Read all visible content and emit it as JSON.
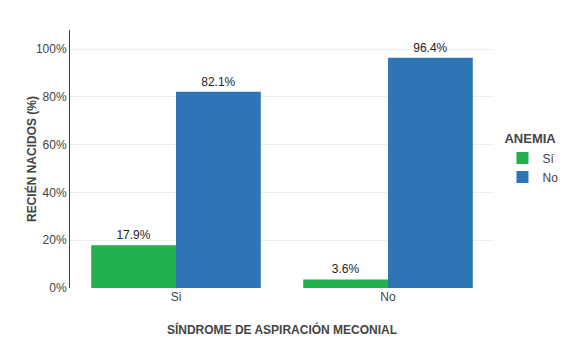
{
  "chart_data": {
    "type": "bar",
    "xlabel": "SÍNDROME DE ASPIRACIÓN MECONIAL",
    "ylabel": "RECIÉN NACIDOS (%)",
    "categories": [
      "Si",
      "No"
    ],
    "series": [
      {
        "name": "Sí",
        "color": "#22b14c",
        "values": [
          17.9,
          3.6
        ],
        "value_labels": [
          "17.9%",
          "3.6%"
        ]
      },
      {
        "name": "No",
        "color": "#2e75b6",
        "values": [
          82.1,
          96.4
        ],
        "value_labels": [
          "82.1%",
          "96.4%"
        ]
      }
    ],
    "legend_title": "ANEMIA",
    "legend": "right",
    "ylim": [
      0,
      108
    ],
    "yticks": [
      {
        "value": 0,
        "label": "0%"
      },
      {
        "value": 20,
        "label": "20%"
      },
      {
        "value": 40,
        "label": "40%"
      },
      {
        "value": 60,
        "label": "60%"
      },
      {
        "value": 80,
        "label": "80%"
      },
      {
        "value": 100,
        "label": "100%"
      }
    ],
    "grid": true,
    "data_labels": true
  }
}
